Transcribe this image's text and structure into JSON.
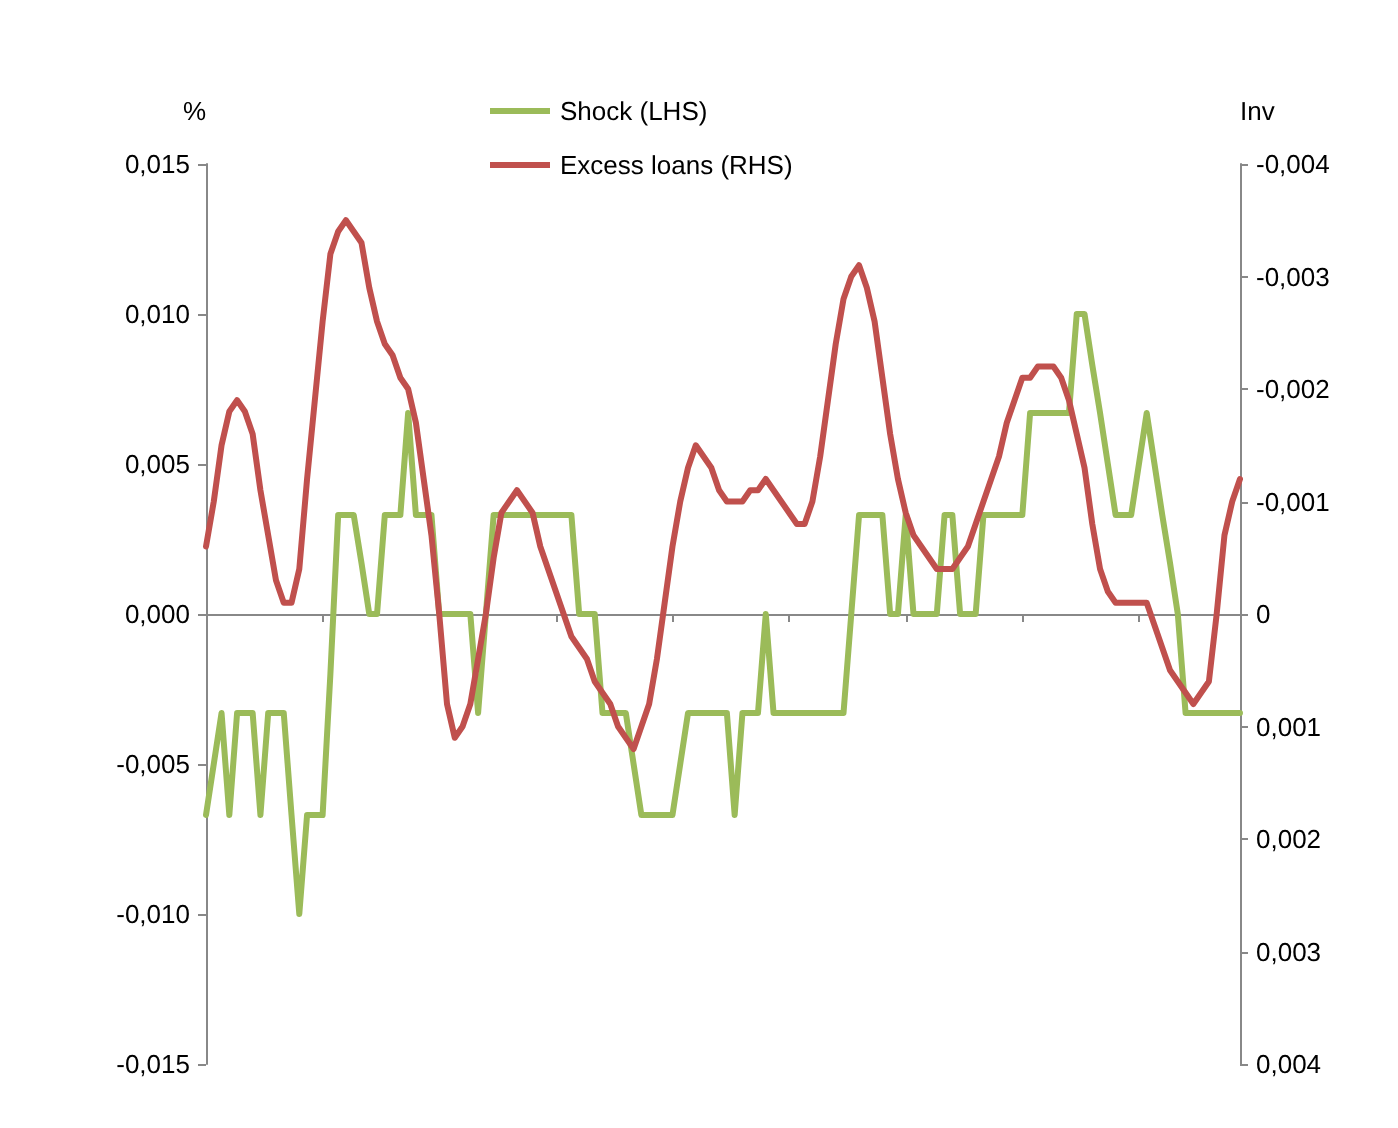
{
  "chart_data": {
    "type": "line",
    "ylabel": "%",
    "y2label": "Inv",
    "categories": [
      null,
      null,
      null,
      null,
      null,
      null,
      null,
      null,
      null,
      null,
      null,
      null,
      null,
      null,
      null,
      null,
      null,
      null,
      null,
      null,
      null,
      null,
      null,
      null,
      null,
      null,
      null,
      null,
      null,
      null,
      null,
      null,
      null,
      null,
      null,
      null,
      null,
      null,
      null,
      null,
      null,
      null,
      null,
      null,
      null,
      null,
      null,
      null,
      null,
      null,
      null,
      null,
      null,
      null,
      null,
      null,
      null,
      null,
      null,
      null,
      null,
      null,
      null,
      null,
      null,
      null,
      null,
      null,
      null,
      null,
      null,
      null,
      null,
      null,
      null,
      null,
      null,
      null,
      null,
      null,
      null,
      null,
      null,
      null,
      null,
      null,
      null,
      null,
      null,
      null,
      null,
      null,
      null,
      null,
      null,
      null,
      null,
      null,
      null,
      null,
      null,
      null,
      null,
      null,
      null,
      null,
      null,
      null,
      null,
      null,
      null,
      null,
      null,
      null,
      null,
      null,
      null,
      null,
      null,
      null,
      null,
      null,
      null,
      null,
      null,
      null,
      null,
      null,
      null,
      null,
      null,
      null,
      null,
      null
    ],
    "series": [
      {
        "name": "Shock (LHS)",
        "color": "#9bbb59",
        "values": [
          -0.0067,
          -0.005,
          -0.0033,
          -0.0067,
          -0.0033,
          -0.0033,
          -0.0033,
          -0.0067,
          -0.0033,
          -0.0033,
          -0.0033,
          -0.0067,
          -0.01,
          -0.0067,
          -0.0067,
          -0.0067,
          -0.002,
          0.0033,
          0.0033,
          0.0033,
          0.0017,
          0,
          0,
          0.0033,
          0.0033,
          0.0033,
          0.0067,
          0.0033,
          0.0033,
          0.0033,
          0,
          0,
          0,
          0,
          0,
          -0.0033,
          0,
          0.0033,
          0.0033,
          0.0033,
          0.0033,
          0.0033,
          0.0033,
          0.0033,
          0.0033,
          0.0033,
          0.0033,
          0.0033,
          0,
          0,
          0,
          -0.0033,
          -0.0033,
          -0.0033,
          -0.0033,
          -0.005,
          -0.0067,
          -0.0067,
          -0.0067,
          -0.0067,
          -0.0067,
          -0.005,
          -0.0033,
          -0.0033,
          -0.0033,
          -0.0033,
          -0.0033,
          -0.0033,
          -0.0067,
          -0.0033,
          -0.0033,
          -0.0033,
          0,
          -0.0033,
          -0.0033,
          -0.0033,
          -0.0033,
          -0.0033,
          -0.0033,
          -0.0033,
          -0.0033,
          -0.0033,
          -0.0033,
          0,
          0.0033,
          0.0033,
          0.0033,
          0.0033,
          0,
          0,
          0.0033,
          0,
          0,
          0,
          0,
          0.0033,
          0.0033,
          0,
          0,
          0,
          0.0033,
          0.0033,
          0.0033,
          0.0033,
          0.0033,
          0.0033,
          0.0067,
          0.0067,
          0.0067,
          0.0067,
          0.0067,
          0.0067,
          0.01,
          0.01,
          0.0083,
          0.0067,
          0.005,
          0.0033,
          0.0033,
          0.0033,
          0.005,
          0.0067,
          0.005,
          0.0033,
          0.0017,
          0,
          -0.0033,
          -0.0033,
          -0.0033,
          -0.0033,
          -0.0033,
          -0.0033,
          -0.0033,
          -0.0033
        ]
      },
      {
        "name": "Excess loans (RHS)",
        "color": "#c0504d",
        "axis": "y2",
        "values": [
          -0.0006,
          -0.001,
          -0.0015,
          -0.0018,
          -0.0019,
          -0.0018,
          -0.0016,
          -0.0011,
          -0.0007,
          -0.0003,
          -0.0001,
          -0.0001,
          -0.0004,
          -0.0012,
          -0.0019,
          -0.0026,
          -0.0032,
          -0.0034,
          -0.0035,
          -0.0034,
          -0.0033,
          -0.0029,
          -0.0026,
          -0.0024,
          -0.0023,
          -0.0021,
          -0.002,
          -0.0017,
          -0.0012,
          -0.0007,
          0,
          0.0008,
          0.0011,
          0.001,
          0.0008,
          0.0004,
          0,
          -0.0005,
          -0.0009,
          -0.001,
          -0.0011,
          -0.001,
          -0.0009,
          -0.0006,
          -0.0004,
          -0.0002,
          0,
          0.0002,
          0.0003,
          0.0004,
          0.0006,
          0.0007,
          0.0008,
          0.001,
          0.0011,
          0.0012,
          0.001,
          0.0008,
          0.0004,
          -0.0001,
          -0.0006,
          -0.001,
          -0.0013,
          -0.0015,
          -0.0014,
          -0.0013,
          -0.0011,
          -0.001,
          -0.001,
          -0.001,
          -0.0011,
          -0.0011,
          -0.0012,
          -0.0011,
          -0.001,
          -0.0009,
          -0.0008,
          -0.0008,
          -0.001,
          -0.0014,
          -0.0019,
          -0.0024,
          -0.0028,
          -0.003,
          -0.0031,
          -0.0029,
          -0.0026,
          -0.0021,
          -0.0016,
          -0.0012,
          -0.0009,
          -0.0007,
          -0.0006,
          -0.0005,
          -0.0004,
          -0.0004,
          -0.0004,
          -0.0005,
          -0.0006,
          -0.0008,
          -0.001,
          -0.0012,
          -0.0014,
          -0.0017,
          -0.0019,
          -0.0021,
          -0.0021,
          -0.0022,
          -0.0022,
          -0.0022,
          -0.0021,
          -0.0019,
          -0.0016,
          -0.0013,
          -0.0008,
          -0.0004,
          -0.0002,
          -0.0001,
          -0.0001,
          -0.0001,
          -0.0001,
          -0.0001,
          0.0001,
          0.0003,
          0.0005,
          0.0006,
          0.0007,
          0.0008,
          0.0007,
          0.0006,
          0,
          -0.0007,
          -0.001,
          -0.0012
        ]
      }
    ],
    "ylim": [
      -0.015,
      0.015
    ],
    "yticks": [
      {
        "value": -0.015,
        "label": "-0,015"
      },
      {
        "value": -0.01,
        "label": "-0,010"
      },
      {
        "value": -0.005,
        "label": "-0,005"
      },
      {
        "value": 0,
        "label": "0,000"
      },
      {
        "value": 0.005,
        "label": "0,005"
      },
      {
        "value": 0.01,
        "label": "0,010"
      },
      {
        "value": 0.015,
        "label": "0,015"
      }
    ],
    "y2lim": [
      0.004,
      -0.004
    ],
    "y2ticks": [
      {
        "value": -0.004,
        "label": "-0,004"
      },
      {
        "value": -0.003,
        "label": "-0,003"
      },
      {
        "value": -0.002,
        "label": "-0,002"
      },
      {
        "value": -0.001,
        "label": "-0,001"
      },
      {
        "value": 0,
        "label": "0"
      },
      {
        "value": 0.001,
        "label": "0,001"
      },
      {
        "value": 0.002,
        "label": "0,002"
      },
      {
        "value": 0.003,
        "label": "0,003"
      },
      {
        "value": 0.004,
        "label": "0,004"
      }
    ],
    "legend": "top",
    "marker": "none",
    "line_style": "solid"
  }
}
